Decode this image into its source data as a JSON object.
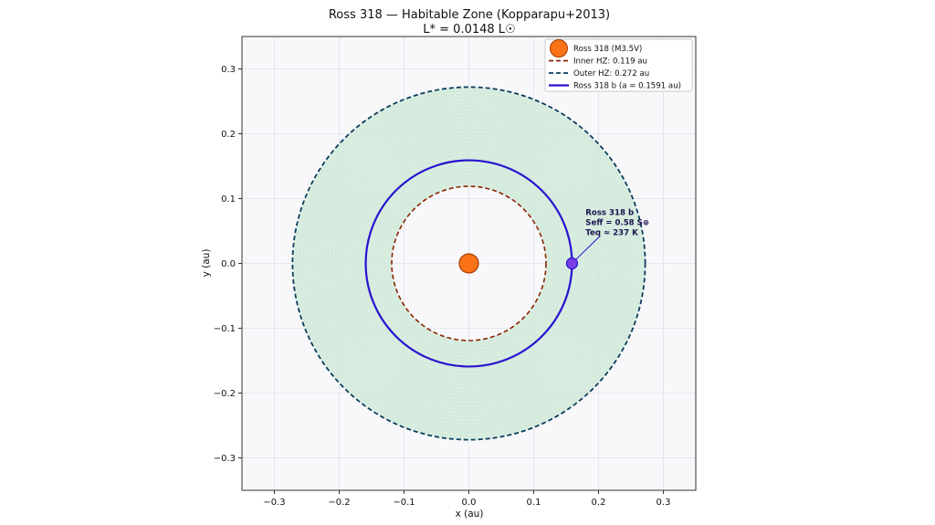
{
  "chart_data": {
    "type": "scatter",
    "title": "Ross 318 — Habitable Zone  (Kopparapu+2013)",
    "subtitle": "L* = 0.0148 L☉",
    "xlabel": "x (au)",
    "ylabel": "y (au)",
    "xlim": [
      -0.35,
      0.35
    ],
    "ylim": [
      -0.35,
      0.35
    ],
    "xticks": [
      -0.3,
      -0.2,
      -0.1,
      0.0,
      0.1,
      0.2,
      0.3
    ],
    "yticks": [
      -0.3,
      -0.2,
      -0.1,
      0.0,
      0.1,
      0.2,
      0.3
    ],
    "xtick_labels": [
      "−0.3",
      "−0.2",
      "−0.1",
      "0.0",
      "0.1",
      "0.2",
      "0.3"
    ],
    "ytick_labels": [
      "−0.3",
      "−0.2",
      "−0.1",
      "0.0",
      "0.1",
      "0.2",
      "0.3"
    ],
    "grid": true,
    "legend_placement": "top-right",
    "star": {
      "label": "Ross 318 (M3.5V)",
      "x": 0.0,
      "y": 0.0,
      "color": "#f97316",
      "edge": "#a33a05"
    },
    "inner_hz": {
      "label": "Inner HZ: 0.119 au",
      "radius": 0.119,
      "color": "#8b2500",
      "style": "dashed"
    },
    "outer_hz": {
      "label": "Outer HZ: 0.272 au",
      "radius": 0.272,
      "color": "#0b3d5c",
      "style": "dashed"
    },
    "hz_fill_color": "#d4ebdd",
    "planet_orbit": {
      "label": "Ross 318 b  (a = 0.1591 au)",
      "radius": 0.1591,
      "color": "#2a12d0",
      "style": "solid"
    },
    "planet": {
      "x": 0.1591,
      "y": 0.0,
      "color": "#7b3fe4",
      "edge": "#2a12d0"
    },
    "annotation": {
      "lines": [
        "Ross 318 b",
        "Seff = 0.58 S⊕",
        "Teq ≈ 237 K"
      ],
      "x": 0.18,
      "y": 0.075
    }
  }
}
